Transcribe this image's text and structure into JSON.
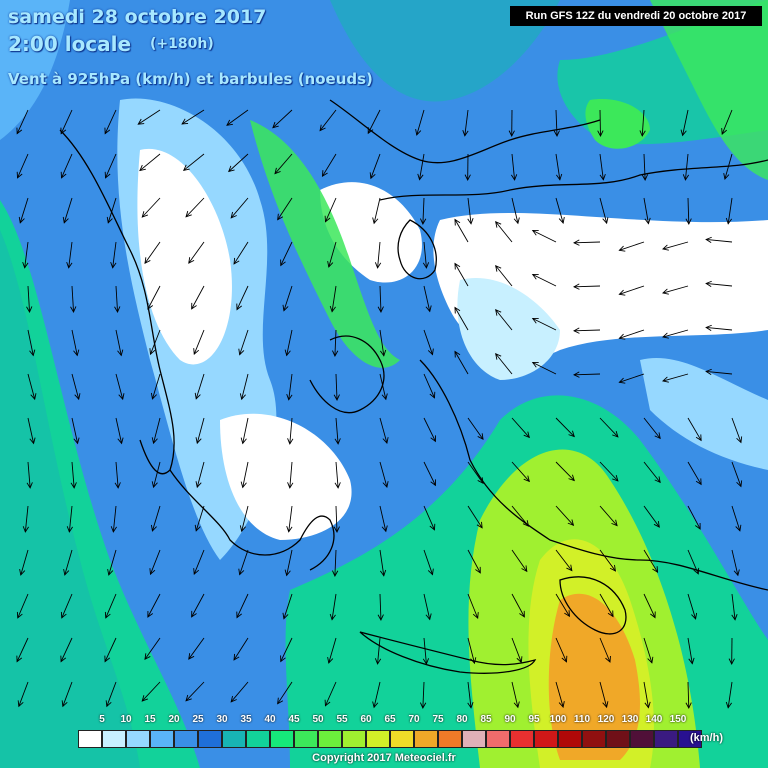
{
  "header": {
    "date": "samedi 28 octobre 2017",
    "time": "2:00 locale",
    "lead": "(+180h)",
    "parameter": "Vent à 925hPa (km/h) et barbules (noeuds)",
    "run": "Run GFS 12Z du vendredi 20 octobre 2017"
  },
  "legend": {
    "unit": "(km/h)",
    "ticks": [
      "5",
      "10",
      "15",
      "20",
      "25",
      "30",
      "35",
      "40",
      "45",
      "50",
      "55",
      "60",
      "65",
      "70",
      "75",
      "80",
      "85",
      "90",
      "95",
      "100",
      "110",
      "120",
      "130",
      "140",
      "150"
    ],
    "colors": [
      "#ffffff",
      "#c8f0ff",
      "#96d8ff",
      "#5ab4f8",
      "#3a8fe6",
      "#1f6fd8",
      "#18b4b4",
      "#12d29a",
      "#16e87a",
      "#3ce85a",
      "#6cf03c",
      "#a0f030",
      "#d2f028",
      "#f0dc28",
      "#f0a828",
      "#f07a28",
      "#e0b0b8",
      "#f06c6c",
      "#e83030",
      "#d01818",
      "#b00808",
      "#901010",
      "#701018",
      "#501038",
      "#3a1a80",
      "#281090"
    ]
  },
  "copyright": "Copyright 2017 Meteociel.fr",
  "colors": {
    "calm": "#ffffff",
    "light": "#c8f0ff",
    "moderate": "#5ab4f8",
    "background": "#3a8fe6",
    "fresh": "#12d29a",
    "strong": "#6cf03c",
    "gale": "#d2f028",
    "severe": "#f0a828"
  }
}
